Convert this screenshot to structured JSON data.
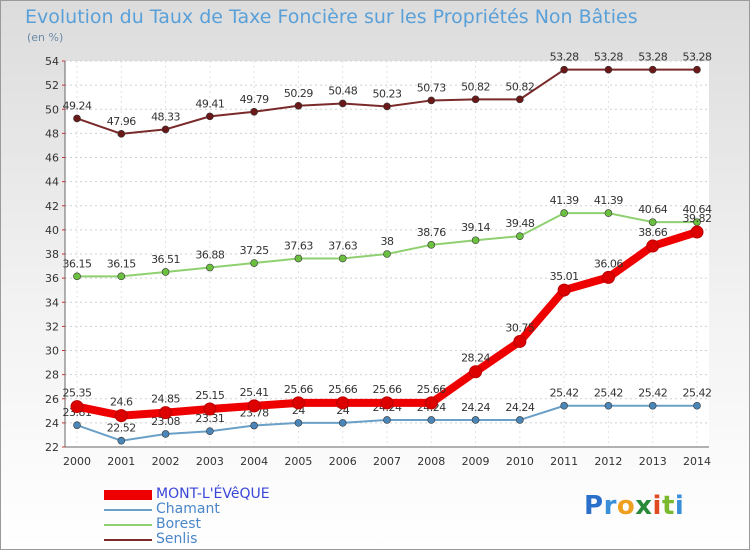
{
  "header": {
    "title": "Evolution du Taux de Taxe Foncière sur les Propriétés Non Bâties",
    "unit": "(en %)"
  },
  "logo": {
    "text": "Proxiti"
  },
  "chart_data": {
    "type": "line",
    "title": "Evolution du Taux de Taxe Foncière sur les Propriétés Non Bâties",
    "ylabel": "(en %)",
    "xlabel": "",
    "ylim": [
      22,
      54
    ],
    "yticks": [
      22,
      24,
      26,
      28,
      30,
      32,
      34,
      36,
      38,
      40,
      42,
      44,
      46,
      48,
      50,
      52,
      54
    ],
    "categories": [
      "2000",
      "2001",
      "2002",
      "2003",
      "2004",
      "2005",
      "2006",
      "2007",
      "2008",
      "2009",
      "2010",
      "2011",
      "2012",
      "2013",
      "2014"
    ],
    "grid": true,
    "legend_position": "bottom-left",
    "series": [
      {
        "name": "Senlis",
        "color": "#7a2a2a",
        "marker": "#6a1818",
        "values": [
          49.24,
          47.96,
          48.33,
          49.41,
          49.79,
          50.29,
          50.48,
          50.23,
          50.73,
          50.82,
          50.82,
          53.28,
          53.28,
          53.28,
          53.28
        ],
        "labels": [
          "49.24",
          "47.96",
          "48.33",
          "49.41",
          "49.79",
          "50.29",
          "50.48",
          "50.23",
          "50.73",
          "50.82",
          "50.82",
          "53.28",
          "53.28",
          "53.28",
          "53.28"
        ]
      },
      {
        "name": "Borest",
        "color": "#8fd070",
        "marker": "#6cc040",
        "values": [
          36.15,
          36.15,
          36.51,
          36.88,
          37.25,
          37.63,
          37.63,
          38,
          38.76,
          39.14,
          39.48,
          41.39,
          41.39,
          40.64,
          40.64
        ],
        "labels": [
          "36.15",
          "36.15",
          "36.51",
          "36.88",
          "37.25",
          "37.63",
          "37.63",
          "38",
          "38.76",
          "39.14",
          "39.48",
          "41.39",
          "41.39",
          "40.64",
          "40.64"
        ]
      },
      {
        "name": "Chamant",
        "color": "#6aa0c8",
        "marker": "#4a86b8",
        "values": [
          23.81,
          22.52,
          23.08,
          23.31,
          23.78,
          24,
          24,
          24.24,
          24.24,
          24.24,
          24.24,
          25.42,
          25.42,
          25.42,
          25.42
        ],
        "labels": [
          "23.81",
          "22.52",
          "23.08",
          "23.31",
          "23.78",
          "24",
          "24",
          "24.24",
          "24.24",
          "24.24",
          "24.24",
          "25.42",
          "25.42",
          "25.42",
          "25.42"
        ]
      },
      {
        "name": "MONT-L'ÉVêQUE",
        "color": "#ee0000",
        "marker": "#dd0000",
        "values": [
          25.35,
          24.6,
          24.85,
          25.15,
          25.41,
          25.66,
          25.66,
          25.66,
          25.66,
          28.24,
          30.75,
          35.01,
          36.06,
          38.66,
          39.82
        ],
        "labels": [
          "25.35",
          "24.6",
          "24.85",
          "25.15",
          "25.41",
          "25.66",
          "25.66",
          "25.66",
          "25.66",
          "28.24",
          "30.75",
          "35.01",
          "36.06",
          "38.66",
          "39.82"
        ]
      }
    ]
  }
}
